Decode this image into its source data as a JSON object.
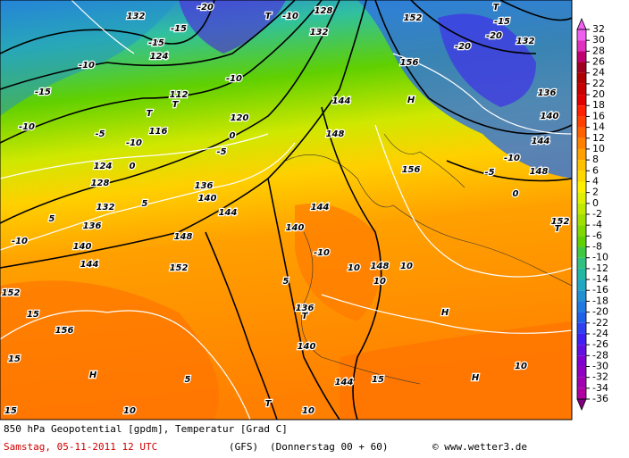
{
  "caption": {
    "line1": "850 hPa Geopotential [gpdm], Temperatur [Grad C]",
    "date": "Samstag, 05-11-2011  12 UTC",
    "model": "(GFS)",
    "forecast": "(Donnerstag 00 + 60)",
    "credit": "© www.wetter3.de"
  },
  "legend": {
    "values": [
      32,
      30,
      28,
      26,
      24,
      22,
      20,
      18,
      16,
      14,
      12,
      10,
      8,
      6,
      4,
      2,
      0,
      -2,
      -4,
      -6,
      -8,
      -10,
      -12,
      -14,
      -16,
      -18,
      -20,
      -22,
      -24,
      -26,
      -28,
      -30,
      -32,
      -34,
      -36
    ],
    "colors": [
      "#f060f0",
      "#e030c0",
      "#c00070",
      "#a00020",
      "#b00000",
      "#c80000",
      "#e00000",
      "#ff2000",
      "#ff4000",
      "#ff6000",
      "#ff8000",
      "#ffa000",
      "#ffc000",
      "#ffd800",
      "#fff000",
      "#e0f000",
      "#c0e800",
      "#a0e000",
      "#80d800",
      "#60d000",
      "#40c840",
      "#30c080",
      "#20b8a0",
      "#20a8c0",
      "#2090d0",
      "#2078e0",
      "#2060e8",
      "#3040f0",
      "#4020f0",
      "#6010e0",
      "#8000d0",
      "#9000c0",
      "#a000b0",
      "#b000a0",
      "#800080"
    ]
  },
  "map": {
    "labels": [
      "-20",
      "T",
      "-10",
      "128",
      "132",
      "132",
      "152",
      "T",
      "-15",
      "-20",
      "132",
      "-20",
      "156",
      "-15",
      "-15",
      "124",
      "-10",
      "-15",
      "-10",
      "112",
      "T",
      "T",
      "116",
      "-10",
      "120",
      "-5",
      "-10",
      "0",
      "124",
      "128",
      "136",
      "140",
      "144",
      "148",
      "152",
      "132",
      "136",
      "140",
      "144",
      "5",
      "0",
      "-5",
      "144",
      "148",
      "H",
      "156",
      "144",
      "-10",
      "-5",
      "148",
      "0",
      "140",
      "136",
      "152",
      "T",
      "144",
      "140",
      "-10",
      "10",
      "148",
      "10",
      "10",
      "5",
      "136",
      "T",
      "H",
      "10",
      "H",
      "144",
      "140",
      "15",
      "15",
      "H",
      "5",
      "T",
      "10",
      "15",
      "10",
      "15",
      "152",
      "156",
      "5",
      "-10"
    ]
  }
}
